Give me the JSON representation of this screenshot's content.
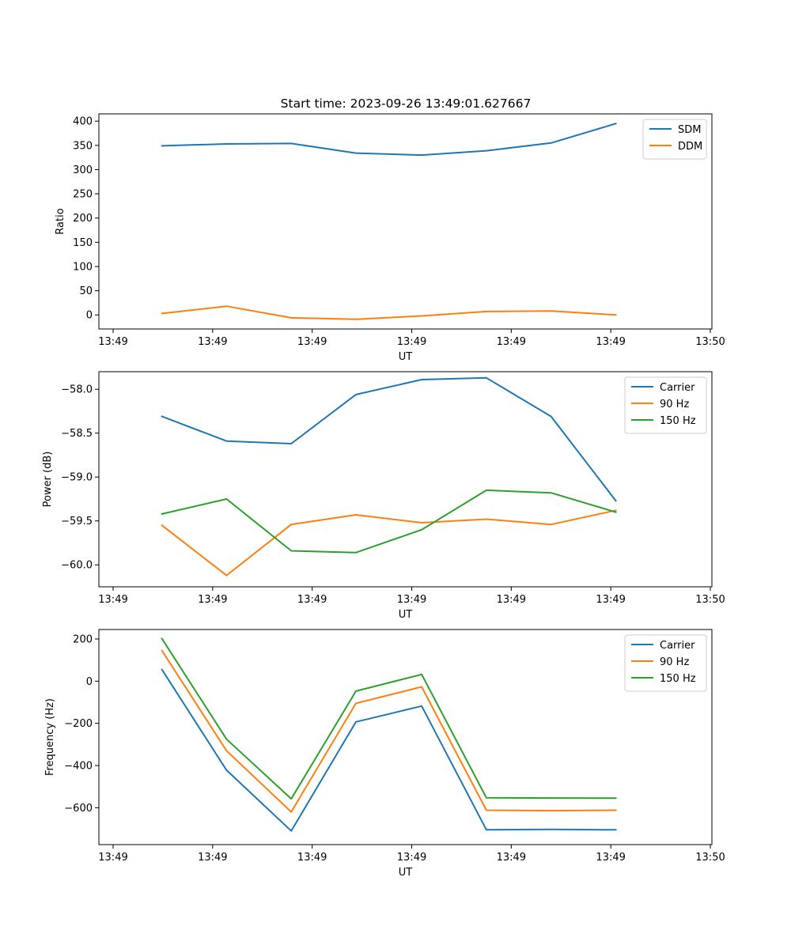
{
  "title": "Start time: 2023-09-26 13:49:01.627667",
  "colors": {
    "blue": "#1f77b4",
    "orange": "#ff7f0e",
    "green": "#2ca02c"
  },
  "x_ticks": [
    "13:49",
    "13:49",
    "13:49",
    "13:49",
    "13:49",
    "13:49",
    "13:50"
  ],
  "chart_data": [
    {
      "type": "line",
      "xlabel": "UT",
      "ylabel": "Ratio",
      "xlim": [
        0,
        6
      ],
      "ylim": [
        -29,
        415
      ],
      "yticks": [
        0,
        50,
        100,
        150,
        200,
        250,
        300,
        350,
        400
      ],
      "ytick_labels": [
        "0",
        "50",
        "100",
        "150",
        "200",
        "250",
        "300",
        "350",
        "400"
      ],
      "legend_position": "top-right",
      "x": [
        0.49,
        1.14,
        1.79,
        2.44,
        3.1,
        3.75,
        4.4,
        5.05
      ],
      "series": [
        {
          "name": "SDM",
          "color": "#1f77b4",
          "values": [
            349,
            353,
            354,
            334,
            330,
            339,
            355,
            395
          ]
        },
        {
          "name": "DDM",
          "color": "#ff7f0e",
          "values": [
            3,
            18,
            -6,
            -9,
            -2,
            7,
            8,
            0
          ]
        }
      ]
    },
    {
      "type": "line",
      "xlabel": "UT",
      "ylabel": "Power (dB)",
      "xlim": [
        0,
        6
      ],
      "ylim": [
        -60.25,
        -57.8
      ],
      "yticks": [
        -60.0,
        -59.5,
        -59.0,
        -58.5,
        -58.0
      ],
      "ytick_labels": [
        "−60.0",
        "−59.5",
        "−59.0",
        "−58.5",
        "−58.0"
      ],
      "legend_position": "top-right",
      "x": [
        0.49,
        1.14,
        1.79,
        2.44,
        3.1,
        3.75,
        4.4,
        5.05
      ],
      "series": [
        {
          "name": "Carrier",
          "color": "#1f77b4",
          "values": [
            -58.31,
            -58.59,
            -58.62,
            -58.06,
            -57.89,
            -57.87,
            -58.31,
            -59.27
          ]
        },
        {
          "name": "90 Hz",
          "color": "#ff7f0e",
          "values": [
            -59.55,
            -60.12,
            -59.54,
            -59.43,
            -59.52,
            -59.48,
            -59.54,
            -59.38
          ]
        },
        {
          "name": "150 Hz",
          "color": "#2ca02c",
          "values": [
            -59.42,
            -59.25,
            -59.84,
            -59.86,
            -59.6,
            -59.15,
            -59.18,
            -59.4
          ]
        }
      ]
    },
    {
      "type": "line",
      "xlabel": "UT",
      "ylabel": "Frequency (Hz)",
      "xlim": [
        0,
        6
      ],
      "ylim": [
        -775,
        245
      ],
      "yticks": [
        -600,
        -400,
        -200,
        0,
        200
      ],
      "ytick_labels": [
        "−600",
        "−400",
        "−200",
        "0",
        "200"
      ],
      "legend_position": "top-right",
      "x": [
        0.49,
        1.14,
        1.79,
        2.44,
        3.1,
        3.75,
        4.4,
        5.05
      ],
      "series": [
        {
          "name": "Carrier",
          "color": "#1f77b4",
          "values": [
            55,
            -422,
            -710,
            -193,
            -118,
            -705,
            -703,
            -705
          ]
        },
        {
          "name": "90 Hz",
          "color": "#ff7f0e",
          "values": [
            145,
            -330,
            -620,
            -105,
            -27,
            -612,
            -614,
            -612
          ]
        },
        {
          "name": "150 Hz",
          "color": "#2ca02c",
          "values": [
            202,
            -275,
            -558,
            -47,
            32,
            -553,
            -554,
            -555
          ]
        }
      ]
    }
  ]
}
